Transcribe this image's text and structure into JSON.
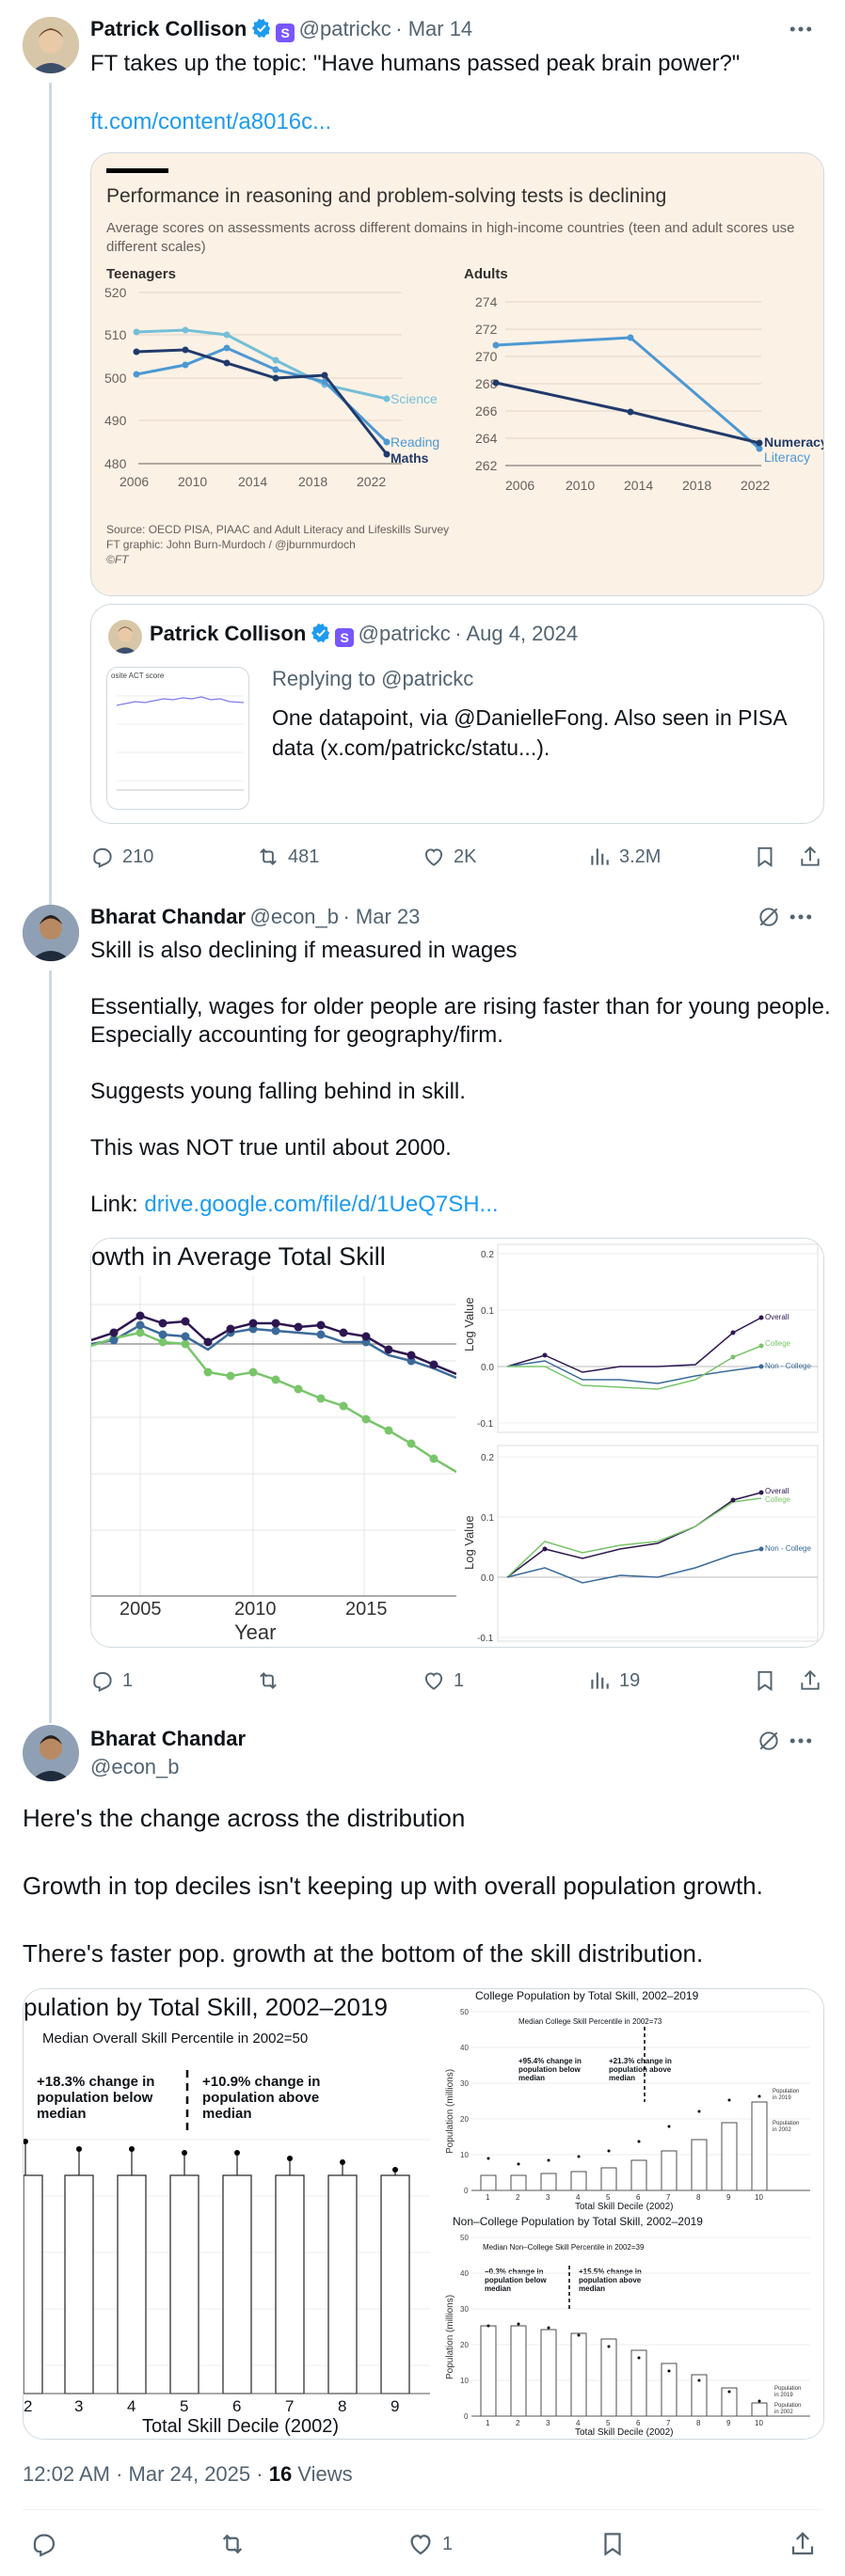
{
  "tweet1": {
    "name": "Patrick Collison",
    "handle": "@patrickc",
    "date": "Mar 14",
    "text": "FT takes up the topic: \"Have humans passed peak brain power?\"",
    "link": "ft.com/content/a8016c...",
    "ft_chart": {
      "title": "Performance in reasoning and problem-solving tests is declining",
      "subtitle": "Average scores on assessments across different domains in high-income countries (teen and adult scores use different scales)",
      "left_title": "Teenagers",
      "right_title": "Adults",
      "source": "Source: OECD PISA, PIAAC and Adult Literacy and Lifeskills Survey",
      "graphic": "FT graphic: John Burn-Murdoch / @jburnmurdoch",
      "copyright": "©FT"
    },
    "quote": {
      "name": "Patrick Collison",
      "handle": "@patrickc",
      "date": "Aug 4, 2024",
      "replying": "Replying to @patrickc",
      "text": "One datapoint, via @DanielleFong. Also seen in PISA data (x.com/patrickc/statu...).",
      "thumb_label": "osite ACT score"
    },
    "stats": {
      "replies": "210",
      "reposts": "481",
      "likes": "2K",
      "views": "3.2M"
    },
    "colors": {
      "ft_bg": "#fcf1e5",
      "science": "#75bfd6",
      "reading": "#4c98d2",
      "maths": "#213a6b",
      "numeracy": "#213a6b",
      "literacy": "#4c98d2"
    }
  },
  "tweet2": {
    "name": "Bharat Chandar",
    "handle": "@econ_b",
    "date": "Mar 23",
    "lines": [
      "Skill is also declining if measured in wages",
      "Essentially, wages for older people are rising faster than for young people.",
      "Especially accounting for geography/firm.",
      "Suggests young falling behind in skill.",
      "This was NOT true until about 2000."
    ],
    "link_prefix": "Link: ",
    "link": "drive.google.com/file/d/1UeQ7SH...",
    "image_left": {
      "title": "owth in Average Total Skill",
      "xlabel": "Year",
      "ticks": [
        "2005",
        "2010",
        "2015"
      ]
    },
    "image_right": {
      "ylabel": "Log Value",
      "series": [
        "Overall",
        "College",
        "Non - College"
      ]
    },
    "stats": {
      "replies": "1",
      "reposts": "",
      "likes": "1",
      "views": "19"
    }
  },
  "tweet3": {
    "name": "Bharat Chandar",
    "handle": "@econ_b",
    "lines": [
      "Here's the change across the distribution",
      "Growth in top deciles isn't keeping up with overall population growth.",
      "There's faster pop. growth at the bottom of the skill distribution."
    ],
    "image_left": {
      "title": "pulation by Total Skill, 2002–2019",
      "median": "Median Overall Skill Percentile in 2002=50",
      "below": "+18.3% change in population below median",
      "above": "+10.9% change in population above median",
      "xlabel": "Total Skill Decile (2002)",
      "ticks": [
        "2",
        "3",
        "4",
        "5",
        "6",
        "7",
        "8",
        "9"
      ]
    },
    "image_right_top": {
      "title": "College Population by Total Skill, 2002–2019",
      "median": "Median College Skill Percentile in 2002=73",
      "below": "+95.4% change in population below median",
      "above": "+21.3% change in population above median",
      "xlabel": "Total Skill Decile (2002)",
      "ylabel": "Population (millions)"
    },
    "image_right_bottom": {
      "title": "Non–College Population by Total Skill, 2002–2019",
      "median": "Median Non–College Skill Percentile in 2002=39",
      "below": "−0.3% change in population below median",
      "above": "+15.5% change in population above median",
      "xlabel": "Total Skill Decile (2002)",
      "ylabel": "Population (millions)"
    },
    "timestamp": "12:02 AM · Mar 24, 2025 · ",
    "views_count": "16",
    "views_label": " Views",
    "stats": {
      "likes": "1"
    }
  }
}
